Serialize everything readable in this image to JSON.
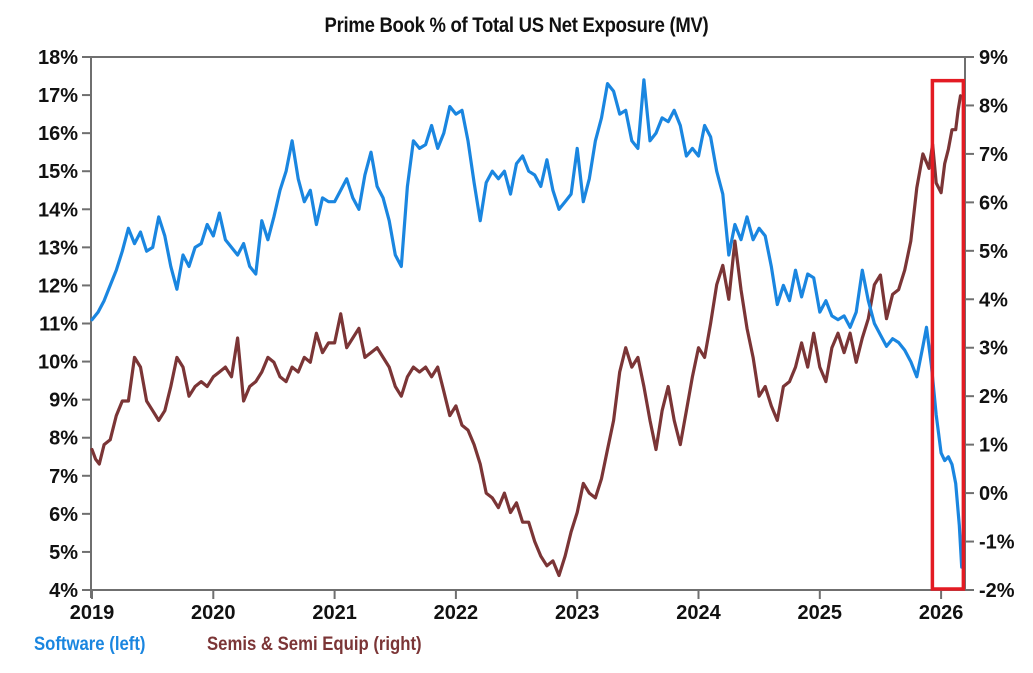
{
  "chart_data": {
    "type": "line",
    "title": "Prime Book % of Total US Net Exposure (MV)",
    "xlabel": "",
    "x_ticks": [
      "2019",
      "2020",
      "2021",
      "2022",
      "2023",
      "2024",
      "2025",
      "2026"
    ],
    "xlim": [
      2019,
      2026.2
    ],
    "left_axis": {
      "label": "",
      "ylim": [
        4,
        18
      ],
      "ticks": [
        "18%",
        "17%",
        "16%",
        "15%",
        "14%",
        "13%",
        "12%",
        "11%",
        "10%",
        "9%",
        "8%",
        "7%",
        "6%",
        "5%",
        "4%"
      ]
    },
    "right_axis": {
      "label": "",
      "ylim": [
        -2,
        9
      ],
      "ticks": [
        "9%",
        "8%",
        "7%",
        "6%",
        "5%",
        "4%",
        "3%",
        "2%",
        "1%",
        "0%",
        "-1%",
        "-2%"
      ]
    },
    "grid": false,
    "legend_position": "bottom-left",
    "highlight_box": {
      "x_range": [
        2025.92,
        2026.2
      ],
      "y_range_left": [
        4,
        17.3
      ],
      "color": "#e31b23"
    },
    "series": [
      {
        "name": "Software (left)",
        "axis": "left",
        "color": "#1a86e0",
        "points": [
          [
            2019.0,
            11.1
          ],
          [
            2019.05,
            11.3
          ],
          [
            2019.1,
            11.6
          ],
          [
            2019.15,
            12.0
          ],
          [
            2019.2,
            12.4
          ],
          [
            2019.25,
            12.9
          ],
          [
            2019.3,
            13.5
          ],
          [
            2019.35,
            13.1
          ],
          [
            2019.4,
            13.4
          ],
          [
            2019.45,
            12.9
          ],
          [
            2019.5,
            13.0
          ],
          [
            2019.55,
            13.8
          ],
          [
            2019.6,
            13.3
          ],
          [
            2019.65,
            12.5
          ],
          [
            2019.7,
            11.9
          ],
          [
            2019.75,
            12.8
          ],
          [
            2019.8,
            12.5
          ],
          [
            2019.85,
            13.0
          ],
          [
            2019.9,
            13.1
          ],
          [
            2019.95,
            13.6
          ],
          [
            2020.0,
            13.3
          ],
          [
            2020.05,
            13.9
          ],
          [
            2020.1,
            13.2
          ],
          [
            2020.15,
            13.0
          ],
          [
            2020.2,
            12.8
          ],
          [
            2020.25,
            13.1
          ],
          [
            2020.3,
            12.5
          ],
          [
            2020.35,
            12.3
          ],
          [
            2020.4,
            13.7
          ],
          [
            2020.45,
            13.2
          ],
          [
            2020.5,
            13.8
          ],
          [
            2020.55,
            14.5
          ],
          [
            2020.6,
            15.0
          ],
          [
            2020.65,
            15.8
          ],
          [
            2020.7,
            14.8
          ],
          [
            2020.75,
            14.2
          ],
          [
            2020.8,
            14.5
          ],
          [
            2020.85,
            13.6
          ],
          [
            2020.9,
            14.3
          ],
          [
            2020.95,
            14.2
          ],
          [
            2021.0,
            14.2
          ],
          [
            2021.05,
            14.5
          ],
          [
            2021.1,
            14.8
          ],
          [
            2021.15,
            14.3
          ],
          [
            2021.2,
            14.0
          ],
          [
            2021.25,
            14.9
          ],
          [
            2021.3,
            15.5
          ],
          [
            2021.35,
            14.6
          ],
          [
            2021.4,
            14.3
          ],
          [
            2021.45,
            13.7
          ],
          [
            2021.5,
            12.8
          ],
          [
            2021.55,
            12.5
          ],
          [
            2021.6,
            14.6
          ],
          [
            2021.65,
            15.8
          ],
          [
            2021.7,
            15.6
          ],
          [
            2021.75,
            15.7
          ],
          [
            2021.8,
            16.2
          ],
          [
            2021.85,
            15.6
          ],
          [
            2021.9,
            16.0
          ],
          [
            2021.95,
            16.7
          ],
          [
            2022.0,
            16.5
          ],
          [
            2022.05,
            16.6
          ],
          [
            2022.1,
            15.8
          ],
          [
            2022.15,
            14.7
          ],
          [
            2022.2,
            13.7
          ],
          [
            2022.25,
            14.7
          ],
          [
            2022.3,
            15.0
          ],
          [
            2022.35,
            14.8
          ],
          [
            2022.4,
            15.0
          ],
          [
            2022.45,
            14.4
          ],
          [
            2022.5,
            15.2
          ],
          [
            2022.55,
            15.4
          ],
          [
            2022.6,
            15.0
          ],
          [
            2022.65,
            14.9
          ],
          [
            2022.7,
            14.6
          ],
          [
            2022.75,
            15.3
          ],
          [
            2022.8,
            14.5
          ],
          [
            2022.85,
            14.0
          ],
          [
            2022.9,
            14.2
          ],
          [
            2022.95,
            14.4
          ],
          [
            2023.0,
            15.6
          ],
          [
            2023.05,
            14.2
          ],
          [
            2023.1,
            14.8
          ],
          [
            2023.15,
            15.8
          ],
          [
            2023.2,
            16.4
          ],
          [
            2023.25,
            17.3
          ],
          [
            2023.3,
            17.1
          ],
          [
            2023.35,
            16.5
          ],
          [
            2023.4,
            16.6
          ],
          [
            2023.45,
            15.8
          ],
          [
            2023.5,
            15.6
          ],
          [
            2023.55,
            17.4
          ],
          [
            2023.6,
            15.8
          ],
          [
            2023.65,
            16.0
          ],
          [
            2023.7,
            16.4
          ],
          [
            2023.75,
            16.3
          ],
          [
            2023.8,
            16.6
          ],
          [
            2023.85,
            16.2
          ],
          [
            2023.9,
            15.4
          ],
          [
            2023.95,
            15.6
          ],
          [
            2024.0,
            15.4
          ],
          [
            2024.05,
            16.2
          ],
          [
            2024.1,
            15.9
          ],
          [
            2024.15,
            15.0
          ],
          [
            2024.2,
            14.4
          ],
          [
            2024.25,
            12.8
          ],
          [
            2024.3,
            13.6
          ],
          [
            2024.35,
            13.2
          ],
          [
            2024.4,
            13.8
          ],
          [
            2024.45,
            13.2
          ],
          [
            2024.5,
            13.5
          ],
          [
            2024.55,
            13.3
          ],
          [
            2024.6,
            12.5
          ],
          [
            2024.65,
            11.5
          ],
          [
            2024.7,
            12.0
          ],
          [
            2024.75,
            11.6
          ],
          [
            2024.8,
            12.4
          ],
          [
            2024.85,
            11.7
          ],
          [
            2024.9,
            12.3
          ],
          [
            2024.95,
            12.2
          ],
          [
            2025.0,
            11.3
          ],
          [
            2025.05,
            11.6
          ],
          [
            2025.1,
            11.2
          ],
          [
            2025.15,
            11.1
          ],
          [
            2025.2,
            11.2
          ],
          [
            2025.25,
            10.9
          ],
          [
            2025.3,
            11.3
          ],
          [
            2025.35,
            12.4
          ],
          [
            2025.4,
            11.6
          ],
          [
            2025.45,
            11.0
          ],
          [
            2025.5,
            10.7
          ],
          [
            2025.55,
            10.4
          ],
          [
            2025.6,
            10.6
          ],
          [
            2025.65,
            10.5
          ],
          [
            2025.7,
            10.3
          ],
          [
            2025.75,
            10.0
          ],
          [
            2025.8,
            9.6
          ],
          [
            2025.85,
            10.4
          ],
          [
            2025.88,
            10.9
          ],
          [
            2025.92,
            9.9
          ],
          [
            2025.96,
            8.6
          ],
          [
            2026.0,
            7.6
          ],
          [
            2026.03,
            7.4
          ],
          [
            2026.06,
            7.5
          ],
          [
            2026.09,
            7.3
          ],
          [
            2026.12,
            6.8
          ],
          [
            2026.15,
            5.7
          ],
          [
            2026.17,
            4.6
          ]
        ]
      },
      {
        "name": "Semis & Semi Equip (right)",
        "axis": "right",
        "color": "#7b3536",
        "points": [
          [
            2019.0,
            0.9
          ],
          [
            2019.03,
            0.7
          ],
          [
            2019.06,
            0.6
          ],
          [
            2019.1,
            1.0
          ],
          [
            2019.15,
            1.1
          ],
          [
            2019.2,
            1.6
          ],
          [
            2019.25,
            1.9
          ],
          [
            2019.3,
            1.9
          ],
          [
            2019.35,
            2.8
          ],
          [
            2019.4,
            2.6
          ],
          [
            2019.45,
            1.9
          ],
          [
            2019.5,
            1.7
          ],
          [
            2019.55,
            1.5
          ],
          [
            2019.6,
            1.7
          ],
          [
            2019.65,
            2.2
          ],
          [
            2019.7,
            2.8
          ],
          [
            2019.75,
            2.6
          ],
          [
            2019.8,
            2.0
          ],
          [
            2019.85,
            2.2
          ],
          [
            2019.9,
            2.3
          ],
          [
            2019.95,
            2.2
          ],
          [
            2020.0,
            2.4
          ],
          [
            2020.05,
            2.5
          ],
          [
            2020.1,
            2.6
          ],
          [
            2020.15,
            2.4
          ],
          [
            2020.2,
            3.2
          ],
          [
            2020.25,
            1.9
          ],
          [
            2020.3,
            2.2
          ],
          [
            2020.35,
            2.3
          ],
          [
            2020.4,
            2.5
          ],
          [
            2020.45,
            2.8
          ],
          [
            2020.5,
            2.7
          ],
          [
            2020.55,
            2.4
          ],
          [
            2020.6,
            2.3
          ],
          [
            2020.65,
            2.6
          ],
          [
            2020.7,
            2.5
          ],
          [
            2020.75,
            2.8
          ],
          [
            2020.8,
            2.7
          ],
          [
            2020.85,
            3.3
          ],
          [
            2020.9,
            2.9
          ],
          [
            2020.95,
            3.1
          ],
          [
            2021.0,
            3.1
          ],
          [
            2021.05,
            3.7
          ],
          [
            2021.1,
            3.0
          ],
          [
            2021.15,
            3.2
          ],
          [
            2021.2,
            3.4
          ],
          [
            2021.25,
            2.8
          ],
          [
            2021.3,
            2.9
          ],
          [
            2021.35,
            3.0
          ],
          [
            2021.4,
            2.8
          ],
          [
            2021.45,
            2.6
          ],
          [
            2021.5,
            2.2
          ],
          [
            2021.55,
            2.0
          ],
          [
            2021.6,
            2.4
          ],
          [
            2021.65,
            2.6
          ],
          [
            2021.7,
            2.5
          ],
          [
            2021.75,
            2.6
          ],
          [
            2021.8,
            2.4
          ],
          [
            2021.85,
            2.6
          ],
          [
            2021.9,
            2.1
          ],
          [
            2021.95,
            1.6
          ],
          [
            2022.0,
            1.8
          ],
          [
            2022.05,
            1.4
          ],
          [
            2022.1,
            1.3
          ],
          [
            2022.15,
            1.0
          ],
          [
            2022.2,
            0.6
          ],
          [
            2022.25,
            0.0
          ],
          [
            2022.3,
            -0.1
          ],
          [
            2022.35,
            -0.3
          ],
          [
            2022.4,
            0.0
          ],
          [
            2022.45,
            -0.4
          ],
          [
            2022.5,
            -0.2
          ],
          [
            2022.55,
            -0.6
          ],
          [
            2022.6,
            -0.6
          ],
          [
            2022.65,
            -1.0
          ],
          [
            2022.7,
            -1.3
          ],
          [
            2022.75,
            -1.5
          ],
          [
            2022.8,
            -1.4
          ],
          [
            2022.85,
            -1.7
          ],
          [
            2022.9,
            -1.3
          ],
          [
            2022.95,
            -0.8
          ],
          [
            2023.0,
            -0.4
          ],
          [
            2023.05,
            0.2
          ],
          [
            2023.1,
            0.0
          ],
          [
            2023.15,
            -0.1
          ],
          [
            2023.2,
            0.3
          ],
          [
            2023.25,
            0.9
          ],
          [
            2023.3,
            1.5
          ],
          [
            2023.35,
            2.5
          ],
          [
            2023.4,
            3.0
          ],
          [
            2023.45,
            2.6
          ],
          [
            2023.5,
            2.8
          ],
          [
            2023.55,
            2.2
          ],
          [
            2023.6,
            1.5
          ],
          [
            2023.65,
            0.9
          ],
          [
            2023.7,
            1.7
          ],
          [
            2023.75,
            2.2
          ],
          [
            2023.8,
            1.5
          ],
          [
            2023.85,
            1.0
          ],
          [
            2023.9,
            1.7
          ],
          [
            2023.95,
            2.4
          ],
          [
            2024.0,
            3.0
          ],
          [
            2024.05,
            2.8
          ],
          [
            2024.1,
            3.5
          ],
          [
            2024.15,
            4.3
          ],
          [
            2024.2,
            4.7
          ],
          [
            2024.25,
            4.0
          ],
          [
            2024.3,
            5.2
          ],
          [
            2024.35,
            4.2
          ],
          [
            2024.4,
            3.4
          ],
          [
            2024.45,
            2.8
          ],
          [
            2024.5,
            2.0
          ],
          [
            2024.55,
            2.2
          ],
          [
            2024.6,
            1.8
          ],
          [
            2024.65,
            1.5
          ],
          [
            2024.7,
            2.2
          ],
          [
            2024.75,
            2.3
          ],
          [
            2024.8,
            2.6
          ],
          [
            2024.85,
            3.1
          ],
          [
            2024.9,
            2.6
          ],
          [
            2024.95,
            3.3
          ],
          [
            2025.0,
            2.6
          ],
          [
            2025.05,
            2.3
          ],
          [
            2025.1,
            3.0
          ],
          [
            2025.15,
            3.3
          ],
          [
            2025.2,
            2.9
          ],
          [
            2025.25,
            3.3
          ],
          [
            2025.3,
            2.7
          ],
          [
            2025.35,
            3.2
          ],
          [
            2025.4,
            3.6
          ],
          [
            2025.45,
            4.3
          ],
          [
            2025.5,
            4.5
          ],
          [
            2025.55,
            3.6
          ],
          [
            2025.6,
            4.1
          ],
          [
            2025.65,
            4.2
          ],
          [
            2025.7,
            4.6
          ],
          [
            2025.75,
            5.2
          ],
          [
            2025.8,
            6.3
          ],
          [
            2025.85,
            7.0
          ],
          [
            2025.9,
            6.7
          ],
          [
            2025.93,
            7.2
          ],
          [
            2025.96,
            6.4
          ],
          [
            2026.0,
            6.2
          ],
          [
            2026.03,
            6.8
          ],
          [
            2026.06,
            7.1
          ],
          [
            2026.09,
            7.5
          ],
          [
            2026.12,
            7.5
          ],
          [
            2026.14,
            7.9
          ],
          [
            2026.16,
            8.2
          ]
        ]
      }
    ]
  }
}
